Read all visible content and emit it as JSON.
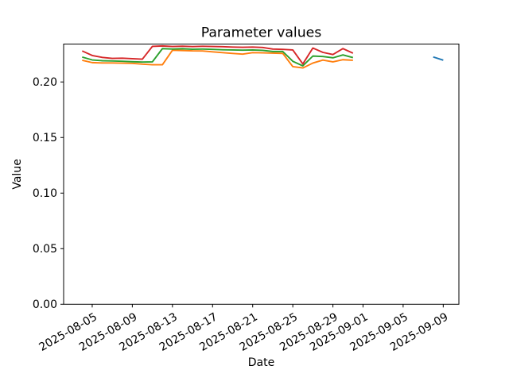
{
  "chart_data": {
    "type": "line",
    "title": "Parameter values",
    "grid": false,
    "legend": "none",
    "x_axis": {
      "label": "Date",
      "epoch": "2025-08-01",
      "xlim_day_offsets": [
        1.15,
        40.56
      ],
      "tick_rotation_deg": 30,
      "tick_labels": [
        "2025-08-05",
        "2025-08-09",
        "2025-08-13",
        "2025-08-17",
        "2025-08-21",
        "2025-08-25",
        "2025-08-29",
        "2025-09-01",
        "2025-09-05",
        "2025-09-09"
      ]
    },
    "y_axis": {
      "label": "Value",
      "ylim": [
        0,
        0.2341
      ],
      "tick_values": [
        0.0,
        0.05,
        0.1,
        0.15,
        0.2
      ],
      "tick_labels": [
        "0.00",
        "0.05",
        "0.10",
        "0.15",
        "0.20"
      ]
    },
    "series": [
      {
        "name": "series-1-blue",
        "color": "#1f77b4",
        "dates": [
          "2025-09-08",
          "2025-09-09"
        ],
        "values": [
          0.2225,
          0.2196
        ]
      },
      {
        "name": "series-2-orange",
        "color": "#ff7f0e",
        "dates": [
          "2025-08-04",
          "2025-08-05",
          "2025-08-06",
          "2025-08-07",
          "2025-08-08",
          "2025-08-09",
          "2025-08-10",
          "2025-08-11",
          "2025-08-12",
          "2025-08-13",
          "2025-08-14",
          "2025-08-15",
          "2025-08-16",
          "2025-08-17",
          "2025-08-18",
          "2025-08-19",
          "2025-08-20",
          "2025-08-21",
          "2025-08-22",
          "2025-08-23",
          "2025-08-24",
          "2025-08-25",
          "2025-08-26",
          "2025-08-27",
          "2025-08-28",
          "2025-08-29",
          "2025-08-30",
          "2025-08-31"
        ],
        "values": [
          0.2195,
          0.2174,
          0.2171,
          0.2171,
          0.2169,
          0.2167,
          0.216,
          0.2155,
          0.2155,
          0.2285,
          0.2283,
          0.228,
          0.2279,
          0.2271,
          0.2264,
          0.2257,
          0.225,
          0.2264,
          0.2262,
          0.2259,
          0.2257,
          0.2138,
          0.2126,
          0.217,
          0.2197,
          0.2181,
          0.22,
          0.2195
        ]
      },
      {
        "name": "series-3-green",
        "color": "#2ca02c",
        "dates": [
          "2025-08-04",
          "2025-08-05",
          "2025-08-06",
          "2025-08-07",
          "2025-08-08",
          "2025-08-09",
          "2025-08-10",
          "2025-08-11",
          "2025-08-12",
          "2025-08-13",
          "2025-08-14",
          "2025-08-15",
          "2025-08-16",
          "2025-08-17",
          "2025-08-18",
          "2025-08-19",
          "2025-08-20",
          "2025-08-21",
          "2025-08-22",
          "2025-08-23",
          "2025-08-24",
          "2025-08-25",
          "2025-08-26",
          "2025-08-27",
          "2025-08-28",
          "2025-08-29",
          "2025-08-30",
          "2025-08-31"
        ],
        "values": [
          0.2224,
          0.2198,
          0.2191,
          0.2189,
          0.2186,
          0.2182,
          0.2179,
          0.2181,
          0.23,
          0.2296,
          0.2299,
          0.2294,
          0.2296,
          0.2293,
          0.229,
          0.2288,
          0.2286,
          0.2288,
          0.2284,
          0.2274,
          0.2274,
          0.2186,
          0.2145,
          0.2233,
          0.2229,
          0.2217,
          0.2243,
          0.2219
        ]
      },
      {
        "name": "series-4-red",
        "color": "#d62728",
        "dates": [
          "2025-08-04",
          "2025-08-05",
          "2025-08-06",
          "2025-08-07",
          "2025-08-08",
          "2025-08-09",
          "2025-08-10",
          "2025-08-11",
          "2025-08-12",
          "2025-08-13",
          "2025-08-14",
          "2025-08-15",
          "2025-08-16",
          "2025-08-17",
          "2025-08-18",
          "2025-08-19",
          "2025-08-20",
          "2025-08-21",
          "2025-08-22",
          "2025-08-23",
          "2025-08-24",
          "2025-08-25",
          "2025-08-26",
          "2025-08-27",
          "2025-08-28",
          "2025-08-29",
          "2025-08-30",
          "2025-08-31"
        ],
        "values": [
          0.2279,
          0.2238,
          0.2221,
          0.2212,
          0.2214,
          0.2209,
          0.2205,
          0.232,
          0.2324,
          0.2319,
          0.2322,
          0.2318,
          0.2321,
          0.2319,
          0.2317,
          0.2314,
          0.2312,
          0.2314,
          0.231,
          0.2296,
          0.2293,
          0.2288,
          0.2162,
          0.2305,
          0.2266,
          0.2247,
          0.23,
          0.2259
        ]
      }
    ]
  },
  "colors": {
    "background": "#ffffff",
    "axes": "#000000"
  }
}
